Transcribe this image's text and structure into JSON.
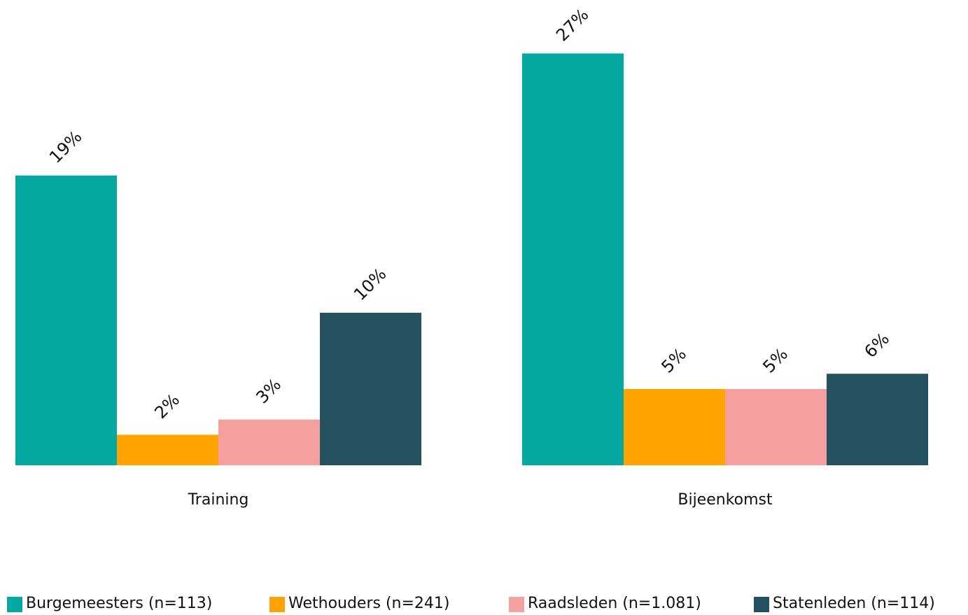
{
  "chart_data": {
    "type": "bar",
    "categories": [
      "Training",
      "Bijeenkomst"
    ],
    "series": [
      {
        "name": "Burgemeesters (n=113)",
        "color": "#05a8a0",
        "values": [
          19,
          27
        ],
        "value_labels": [
          "19%",
          "27%"
        ]
      },
      {
        "name": "Wethouders (n=241)",
        "color": "#ffa300",
        "values": [
          2,
          5
        ],
        "value_labels": [
          "2%",
          "5%"
        ]
      },
      {
        "name": "Raadsleden (n=1.081)",
        "color": "#f4a09f",
        "values": [
          3,
          5
        ],
        "value_labels": [
          "3%",
          "5%"
        ]
      },
      {
        "name": "Statenleden (n=114)",
        "color": "#24515f",
        "values": [
          10,
          6
        ],
        "value_labels": [
          "10%",
          "6%"
        ]
      }
    ],
    "legend": "bottom"
  }
}
